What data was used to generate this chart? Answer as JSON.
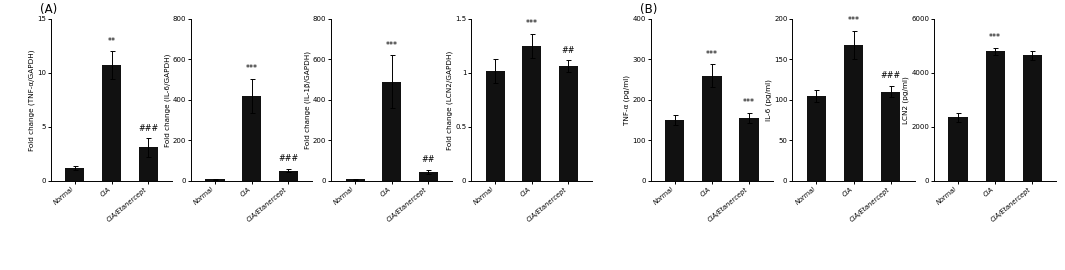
{
  "panel_A": {
    "label": "(A)",
    "subplots": [
      {
        "ylabel": "Fold change (TNF-α/GAPDH)",
        "ylim": [
          0,
          15
        ],
        "yticks": [
          0,
          5,
          10,
          15
        ],
        "categories": [
          "Normal",
          "CIA",
          "CIA/Etanercept"
        ],
        "values": [
          1.2,
          10.7,
          3.1
        ],
        "errors": [
          0.15,
          1.3,
          0.85
        ],
        "sig_stars_CIA": "**",
        "sig_stars_treat": "###"
      },
      {
        "ylabel": "Fold change (IL-6/GAPDH)",
        "ylim": [
          0,
          800
        ],
        "yticks": [
          0,
          200,
          400,
          600,
          800
        ],
        "categories": [
          "Normal",
          "CIA",
          "CIA/Etanercept"
        ],
        "values": [
          8,
          420,
          50
        ],
        "errors": [
          3,
          85,
          8
        ],
        "sig_stars_CIA": "***",
        "sig_stars_treat": "###"
      },
      {
        "ylabel": "Fold change (IL-1β/GAPDH)",
        "ylim": [
          0,
          800
        ],
        "yticks": [
          0,
          200,
          400,
          600,
          800
        ],
        "categories": [
          "Normal",
          "CIA",
          "CIA/Etanercept"
        ],
        "values": [
          8,
          490,
          45
        ],
        "errors": [
          3,
          130,
          10
        ],
        "sig_stars_CIA": "***",
        "sig_stars_treat": "##"
      },
      {
        "ylabel": "Fold change (LCN2/GAPDH)",
        "ylim": [
          0.0,
          1.5
        ],
        "yticks": [
          0.0,
          0.5,
          1.0,
          1.5
        ],
        "categories": [
          "Normal",
          "CIA",
          "CIA/Etanercept"
        ],
        "values": [
          1.02,
          1.25,
          1.06
        ],
        "errors": [
          0.11,
          0.11,
          0.055
        ],
        "sig_stars_CIA": "***",
        "sig_stars_treat": "##"
      }
    ]
  },
  "panel_B": {
    "label": "(B)",
    "subplots": [
      {
        "ylabel": "TNF-α (pg/ml)",
        "ylim": [
          0,
          400
        ],
        "yticks": [
          0,
          100,
          200,
          300,
          400
        ],
        "categories": [
          "Normal",
          "CIA",
          "CIA/Etanercept"
        ],
        "values": [
          150,
          260,
          155
        ],
        "errors": [
          12,
          28,
          13
        ],
        "sig_stars_CIA": "***",
        "sig_stars_treat": "***"
      },
      {
        "ylabel": "IL-6 (pg/ml)",
        "ylim": [
          0,
          200
        ],
        "yticks": [
          0,
          50,
          100,
          150,
          200
        ],
        "categories": [
          "Normal",
          "CIA",
          "CIA/Etanercept"
        ],
        "values": [
          105,
          168,
          110
        ],
        "errors": [
          7,
          17,
          7
        ],
        "sig_stars_CIA": "***",
        "sig_stars_treat": "###"
      },
      {
        "ylabel": "LCN2 (pg/ml)",
        "ylim": [
          0,
          6000
        ],
        "yticks": [
          0,
          2000,
          4000,
          6000
        ],
        "categories": [
          "Normal",
          "CIA",
          "CIA/Etanercept"
        ],
        "values": [
          2350,
          4800,
          4650
        ],
        "errors": [
          180,
          140,
          175
        ],
        "sig_stars_CIA": "***",
        "sig_stars_treat": ""
      }
    ]
  },
  "bar_color": "#111111",
  "bar_width": 0.52,
  "fontsize_ylabel": 5.2,
  "fontsize_tick": 5.0,
  "fontsize_sig": 5.8,
  "fontsize_label": 8.5,
  "fontsize_xticklabel": 4.8
}
